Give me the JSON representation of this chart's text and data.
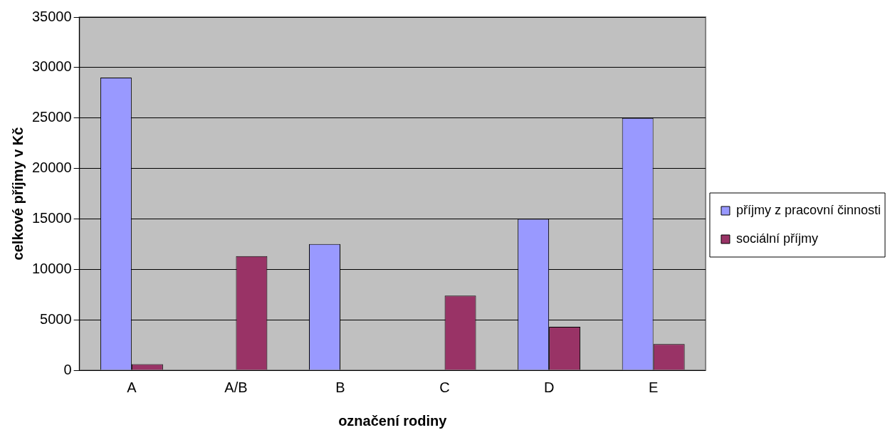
{
  "chart_data": {
    "type": "bar",
    "xlabel": "označení rodiny",
    "ylabel": "celkové příjmy v Kč",
    "categories": [
      "A",
      "A/B",
      "B",
      "C",
      "D",
      "E"
    ],
    "series": [
      {
        "name": "příjmy z pracovní činnosti",
        "color": "#9999ff",
        "values": [
          29000,
          null,
          12500,
          null,
          15000,
          25000
        ]
      },
      {
        "name": "sociální příjmy",
        "color": "#993366",
        "values": [
          600,
          11300,
          null,
          7400,
          4300,
          2600
        ]
      }
    ],
    "ylim": [
      0,
      35000
    ],
    "yticks": [
      0,
      5000,
      10000,
      15000,
      20000,
      25000,
      30000,
      35000
    ],
    "grid": "y",
    "legend": "right"
  }
}
